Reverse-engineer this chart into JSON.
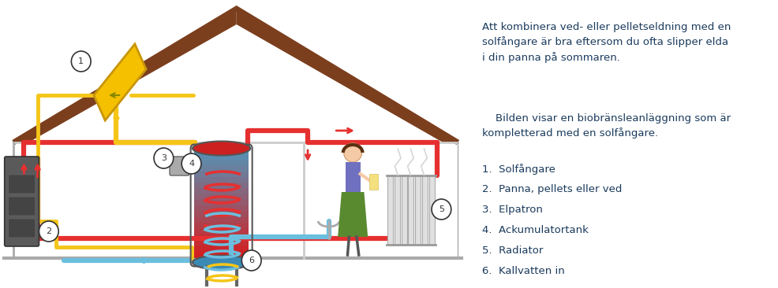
{
  "fig_width": 9.87,
  "fig_height": 3.66,
  "bg_color": "#ffffff",
  "text_color": "#1a3a5c",
  "roof_color": "#7B3F1E",
  "red_pipe": "#e63030",
  "blue_pipe": "#6bbfde",
  "yellow_pipe": "#f5c518",
  "para1": "Att kombinera ved- eller pelletseldning med en\nsolfångare är bra eftersom du ofta slipper elda\ni din panna på sommaren.",
  "para2": "    Bilden visar en biobränsleanläggning som är\nkompletterad med en solfångare.",
  "items": [
    "1.  Solfångare",
    "2.  Panna, pellets eller ved",
    "3.  Elpatron",
    "4.  Ackumulatortank",
    "5.  Radiator",
    "6.  Kallvatten in"
  ],
  "text_fontsize": 9.5,
  "item_fontsize": 9.5
}
